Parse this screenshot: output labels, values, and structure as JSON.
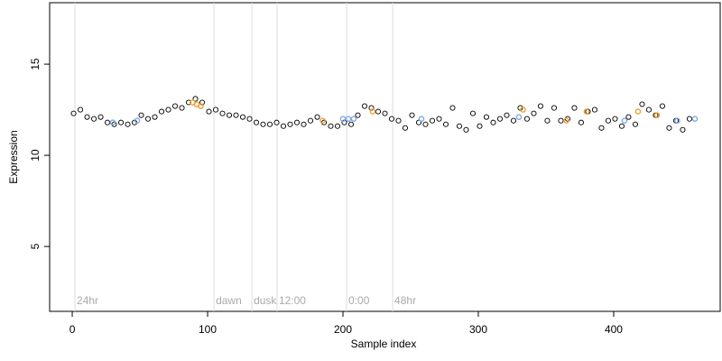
{
  "chart_data": {
    "type": "scatter",
    "xlabel": "Sample index",
    "ylabel": "Expression",
    "xlim": [
      -16.7,
      478.7
    ],
    "ylim": [
      1.44,
      18.37
    ],
    "xticks": [
      0,
      100,
      200,
      300,
      400
    ],
    "yticks": [
      5,
      10,
      15
    ],
    "annotations": [
      {
        "x": 2,
        "label": "24hr"
      },
      {
        "x": 104.7,
        "label": "dawn"
      },
      {
        "x": 132.7,
        "label": "dusk"
      },
      {
        "x": 151.3,
        "label": "12:00"
      },
      {
        "x": 202.7,
        "label": "0:00"
      },
      {
        "x": 236.7,
        "label": "48hr"
      }
    ],
    "annotation_color": "#dddddd",
    "series": [
      {
        "color": "#000000",
        "x": [
          1,
          6,
          11,
          16,
          21,
          26,
          31,
          36,
          41,
          46,
          51,
          56,
          61,
          66,
          71,
          76,
          81,
          86,
          91,
          96,
          101,
          106,
          111,
          116,
          121,
          126,
          131,
          136,
          141,
          146,
          151,
          156,
          161,
          166,
          171,
          176,
          181,
          186,
          191,
          196,
          201,
          206,
          211,
          216,
          221,
          226,
          231,
          236,
          241,
          246,
          251,
          256,
          261,
          266,
          271,
          276,
          281,
          286,
          291,
          296,
          301,
          306,
          311,
          316,
          321,
          326,
          331,
          336,
          341,
          346,
          351,
          356,
          361,
          366,
          371,
          376,
          381,
          386,
          391,
          396,
          401,
          406,
          411,
          416,
          421,
          426,
          431,
          436,
          441,
          446,
          451,
          456
        ],
        "values": [
          12.3,
          12.5,
          12.1,
          12.0,
          12.1,
          11.8,
          11.7,
          11.8,
          11.7,
          11.8,
          12.2,
          12.0,
          12.1,
          12.4,
          12.5,
          12.7,
          12.6,
          12.9,
          13.1,
          12.9,
          12.4,
          12.5,
          12.3,
          12.2,
          12.2,
          12.1,
          12.0,
          11.8,
          11.7,
          11.7,
          11.8,
          11.6,
          11.7,
          11.8,
          11.7,
          11.9,
          12.1,
          11.8,
          11.6,
          11.6,
          11.8,
          11.7,
          12.2,
          12.7,
          12.6,
          12.4,
          12.3,
          12.0,
          11.9,
          11.5,
          12.2,
          11.8,
          11.7,
          11.9,
          12.0,
          11.7,
          12.6,
          11.6,
          11.4,
          12.3,
          11.6,
          12.1,
          11.8,
          12.0,
          12.2,
          11.9,
          12.6,
          12.0,
          12.3,
          12.7,
          11.9,
          12.6,
          11.9,
          12.0,
          12.6,
          11.8,
          12.4,
          12.5,
          11.5,
          11.9,
          12.0,
          11.6,
          12.1,
          11.7,
          12.8,
          12.5,
          12.2,
          12.7,
          11.5,
          11.9,
          11.4,
          12.0
        ]
      },
      {
        "color": "#f0a030",
        "x": [
          89,
          92,
          95,
          185,
          222,
          333,
          365,
          380,
          418,
          432
        ],
        "values": [
          12.9,
          12.8,
          12.7,
          11.9,
          12.4,
          12.5,
          11.9,
          12.4,
          12.4,
          12.2
        ]
      },
      {
        "color": "#7fa8e0",
        "x": [
          30,
          48,
          200,
          204,
          208,
          258,
          330,
          408,
          447,
          460
        ],
        "values": [
          11.8,
          11.9,
          12.0,
          12.0,
          12.0,
          12.0,
          12.1,
          11.9,
          11.9,
          12.0
        ]
      }
    ]
  }
}
